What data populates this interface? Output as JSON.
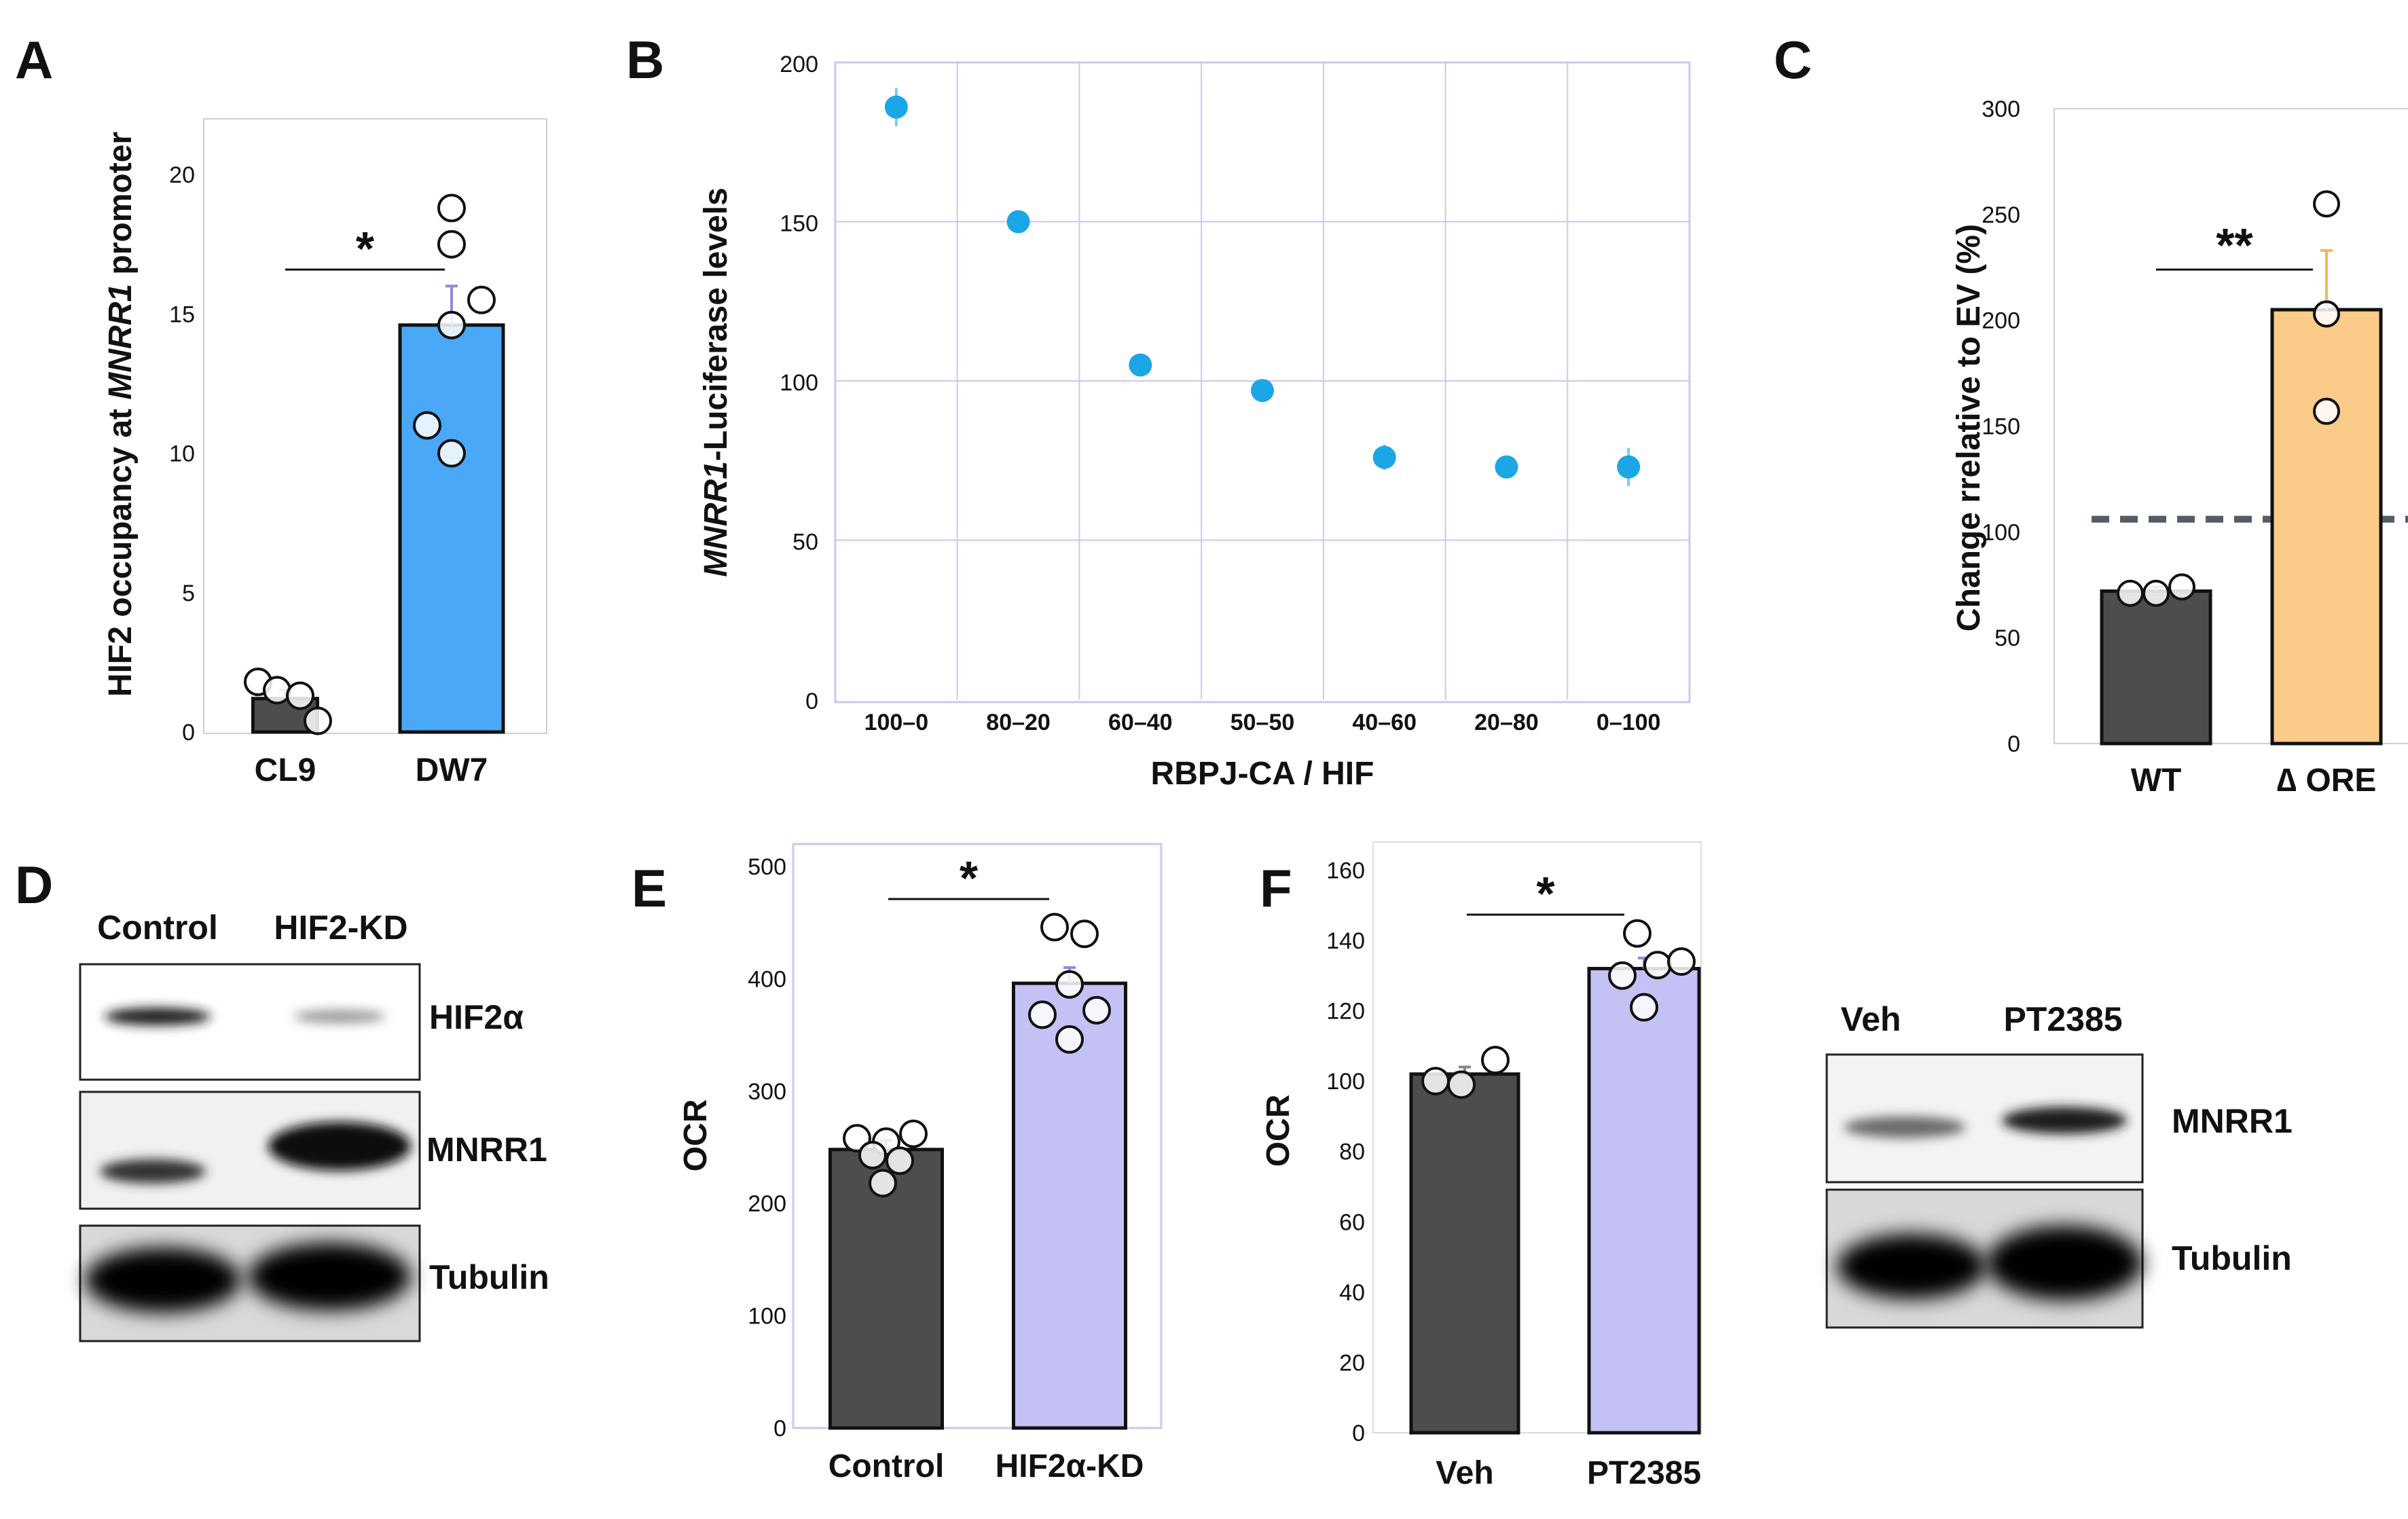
{
  "panels": {
    "A": {
      "label": "A"
    },
    "B": {
      "label": "B"
    },
    "C": {
      "label": "C"
    },
    "D": {
      "label": "D"
    },
    "E": {
      "label": "E"
    },
    "F": {
      "label": "F"
    }
  },
  "colors": {
    "dark_bar": "#4d4d4d",
    "blue_bar": "#4aa8f7",
    "orange_bar": "#fbcb8a",
    "lavender_bar": "#c4c2f4",
    "dot_blue": "#1ba6e6",
    "grid_blue": "#c9c9f2",
    "frame_grey": "#cfcfcf"
  },
  "chart_data": [
    {
      "id": "A",
      "type": "bar",
      "title": "",
      "ylabel_parts": [
        "HIF2 occupancy at ",
        "MNRR1",
        " promoter"
      ],
      "xlabel": "",
      "categories": [
        "CL9",
        "DW7"
      ],
      "values": [
        1.2,
        14.6
      ],
      "errors": [
        0.3,
        1.4
      ],
      "points": [
        [
          1.8,
          1.5,
          1.3,
          0.4
        ],
        [
          18.8,
          17.5,
          15.5,
          14.6,
          11.0,
          10.0
        ]
      ],
      "yticks": [
        0,
        5,
        10,
        15,
        20
      ],
      "ylim": [
        0,
        22
      ],
      "significance": "*"
    },
    {
      "id": "B",
      "type": "scatter",
      "title": "",
      "ylabel_parts": [
        "MNRR1",
        "-Luciferase levels"
      ],
      "xlabel": "RBPJ-CA / HIF",
      "categories": [
        "100–0",
        "80–20",
        "60–40",
        "50–50",
        "40–60",
        "20–80",
        "0–100"
      ],
      "values": [
        186,
        150,
        105,
        97,
        76,
        73,
        73
      ],
      "errors": [
        6,
        3,
        1,
        1,
        4,
        1,
        6
      ],
      "yticks": [
        0,
        50,
        100,
        150,
        200
      ],
      "ylim": [
        0,
        200
      ],
      "grid": true
    },
    {
      "id": "C",
      "type": "bar",
      "title": "",
      "ylabel": "Change rrelative to EV (%)",
      "xlabel": "",
      "categories": [
        "WT",
        "∆ ORE"
      ],
      "values": [
        72,
        205
      ],
      "errors": [
        2,
        28
      ],
      "points": [
        [
          71,
          71,
          74
        ],
        [
          255,
          203,
          157
        ]
      ],
      "yticks": [
        0,
        50,
        100,
        150,
        200,
        250,
        300
      ],
      "ylim": [
        0,
        300
      ],
      "reference_line": 106,
      "significance": "**"
    },
    {
      "id": "E",
      "type": "bar",
      "title": "",
      "ylabel": "OCR",
      "xlabel": "",
      "categories": [
        "Control",
        "HIF2α-KD"
      ],
      "values": [
        248,
        396
      ],
      "errors": [
        8,
        14
      ],
      "points": [
        [
          258,
          255,
          262,
          243,
          238,
          218
        ],
        [
          446,
          440,
          395,
          368,
          372,
          346
        ]
      ],
      "yticks": [
        0,
        100,
        200,
        300,
        400,
        500
      ],
      "ylim": [
        0,
        520
      ],
      "significance": "*"
    },
    {
      "id": "F",
      "type": "bar",
      "title": "",
      "ylabel": "OCR",
      "xlabel": "",
      "categories": [
        "Veh",
        "PT2385"
      ],
      "values": [
        102,
        132
      ],
      "errors": [
        2,
        3
      ],
      "points": [
        [
          100,
          99,
          106
        ],
        [
          142,
          130,
          133,
          134,
          121
        ]
      ],
      "yticks": [
        0,
        20,
        40,
        60,
        80,
        100,
        120,
        140,
        160
      ],
      "ylim": [
        0,
        168
      ],
      "significance": "*"
    }
  ],
  "blot_D": {
    "columns": [
      "Control",
      "HIF2-KD"
    ],
    "rows": [
      "HIF2α",
      "MNRR1",
      "Tubulin"
    ]
  },
  "blot_F": {
    "columns": [
      "Veh",
      "PT2385"
    ],
    "rows": [
      "MNRR1",
      "Tubulin"
    ]
  }
}
